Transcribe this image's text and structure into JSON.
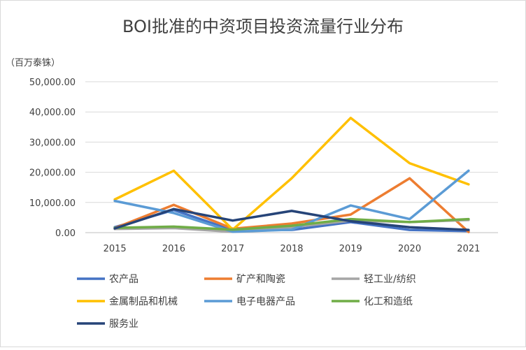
{
  "chart_data": {
    "type": "line",
    "title": "BOI批准的中资项目投资流量行业分布",
    "ylabel": "（百万泰铢）",
    "xlabel": "",
    "categories": [
      "2015",
      "2016",
      "2017",
      "2018",
      "2019",
      "2020",
      "2021"
    ],
    "ylim": [
      0,
      50000
    ],
    "yticks": [
      "0.00",
      "10,000.00",
      "20,000.00",
      "30,000.00",
      "40,000.00",
      "50,000.00"
    ],
    "grid": "horizontal",
    "legend_position": "bottom",
    "series": [
      {
        "name": "农产品",
        "color": "#4472C4",
        "values": [
          1800,
          7500,
          800,
          900,
          3500,
          900,
          500
        ]
      },
      {
        "name": "矿产和陶瓷",
        "color": "#ED7D31",
        "values": [
          1500,
          9200,
          1300,
          3000,
          6000,
          18000,
          200
        ]
      },
      {
        "name": "轻工业/纺织",
        "color": "#A5A5A5",
        "values": [
          1200,
          1500,
          300,
          1800,
          4000,
          3500,
          4200
        ]
      },
      {
        "name": "金属制品和机械",
        "color": "#FFC000",
        "values": [
          11000,
          20500,
          1000,
          18000,
          38000,
          23000,
          16000
        ]
      },
      {
        "name": "电子电器产品",
        "color": "#5B9BD5",
        "values": [
          10500,
          6500,
          300,
          1000,
          9000,
          4500,
          20500
        ]
      },
      {
        "name": "化工和造纸",
        "color": "#70AD47",
        "values": [
          1600,
          2000,
          1000,
          2300,
          4500,
          3500,
          4500
        ]
      },
      {
        "name": "服务业",
        "color": "#264478",
        "values": [
          1400,
          7800,
          4000,
          7200,
          3800,
          1800,
          900
        ]
      }
    ]
  }
}
